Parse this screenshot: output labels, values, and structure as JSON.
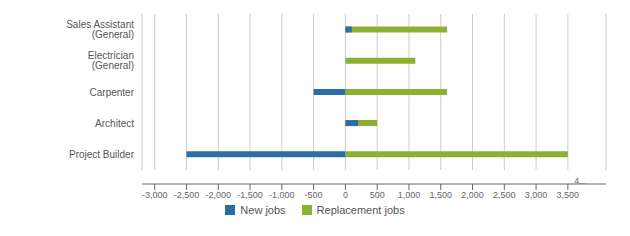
{
  "chart_data": {
    "type": "bar",
    "orientation": "horizontal",
    "categories": [
      "Sales Assistant (General)",
      "Electrician (General)",
      "Carpenter",
      "Architect",
      "Project Builder"
    ],
    "series": [
      {
        "name": "New jobs",
        "color": "#2e6da4",
        "values": [
          100,
          0,
          -500,
          200,
          -2500
        ]
      },
      {
        "name": "Replacement jobs",
        "color": "#8db030",
        "values": [
          1600,
          1100,
          1600,
          500,
          3500
        ]
      }
    ],
    "xlim": [
      -3200,
      4100
    ],
    "xticks": [
      {
        "value": -3000,
        "label": "-3,000"
      },
      {
        "value": -2500,
        "label": "-2,500"
      },
      {
        "value": -2000,
        "label": "-2,000"
      },
      {
        "value": -1500,
        "label": "-1,500"
      },
      {
        "value": -1000,
        "label": "-1,000"
      },
      {
        "value": -500,
        "label": "-500"
      },
      0,
      500,
      {
        "value": 1000,
        "label": "1,000"
      },
      {
        "value": 1500,
        "label": "1,500"
      },
      {
        "value": 2000,
        "label": "2,000"
      },
      {
        "value": 2500,
        "label": "2,500"
      },
      {
        "value": 3000,
        "label": "3,000"
      },
      {
        "value": 3500,
        "label": "3,500"
      }
    ],
    "annotations": [
      {
        "text": "4...",
        "x": 3700
      }
    ],
    "grid": true
  }
}
